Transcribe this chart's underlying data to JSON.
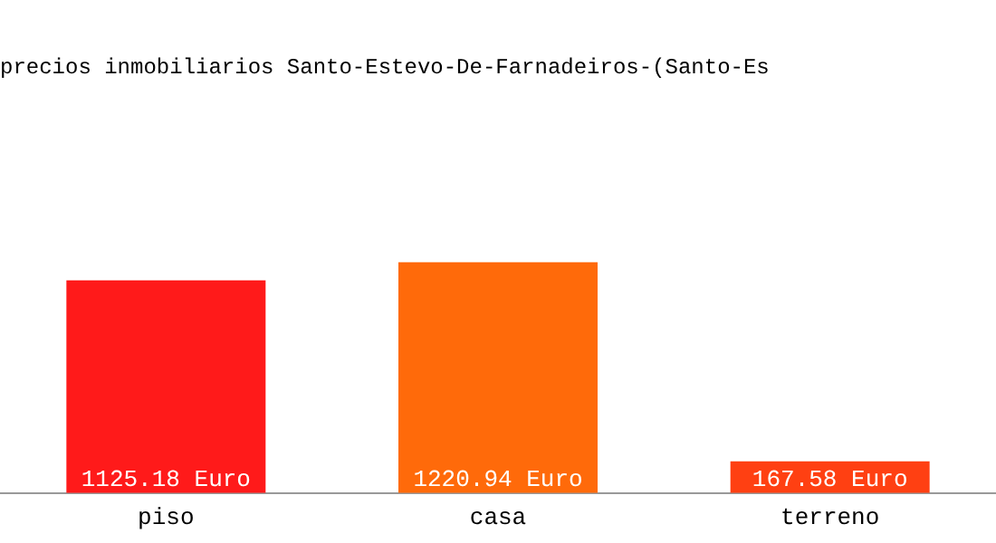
{
  "chart_data": {
    "type": "bar",
    "title": "precios inmobiliarios Santo-Estevo-De-Farnadeiros-(Santo-Es",
    "categories": [
      "piso",
      "casa",
      "terreno"
    ],
    "values": [
      1125.18,
      1220.94,
      167.58
    ],
    "colors": [
      "#ff1a1a",
      "#ff6a0a",
      "#ff4012"
    ],
    "value_labels": [
      "1125.18 Euro",
      "1220.94 Euro",
      "167.58 Euro"
    ],
    "grid": false,
    "legend": false
  }
}
